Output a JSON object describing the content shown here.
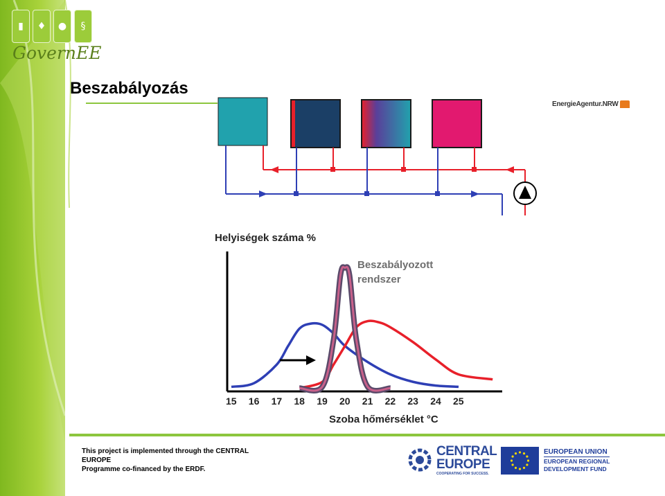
{
  "header": {
    "logo_text": "GovernEE",
    "logo_tile_icons": [
      "building-icon",
      "leaf-icon",
      "bulb-icon",
      "paragraph-icon"
    ],
    "title": "Beszabályozás",
    "energy_agency_logo": "EnergieAgentur.NRW"
  },
  "chart_data": {
    "type": "line",
    "title": "Helyiségek száma %",
    "xlabel": "Szoba hőmérséklet °C",
    "ylabel": "Helyiségek száma %",
    "x_ticks": [
      "15",
      "16",
      "17",
      "18",
      "19",
      "20",
      "21",
      "22",
      "23",
      "24",
      "25"
    ],
    "annotation": "Beszabályozott rendszer",
    "series": [
      {
        "color": "#2e3fb5",
        "x": [
          15,
          16,
          17,
          17.5,
          18,
          18.5,
          19,
          19.5,
          20,
          21,
          22,
          23,
          24,
          25
        ],
        "y": [
          0.02,
          0.05,
          0.2,
          0.35,
          0.49,
          0.53,
          0.52,
          0.45,
          0.35,
          0.22,
          0.12,
          0.06,
          0.03,
          0.02
        ]
      },
      {
        "color": "#e8202a",
        "x": [
          18,
          19,
          19.5,
          20,
          20.5,
          21,
          21.5,
          22,
          23,
          24,
          25,
          26.5
        ],
        "y": [
          0.01,
          0.06,
          0.2,
          0.35,
          0.5,
          0.55,
          0.54,
          0.5,
          0.38,
          0.24,
          0.12,
          0.08
        ]
      },
      {
        "color": "#7a3f6a",
        "x": [
          18,
          19,
          19.5,
          19.8,
          20,
          20.2,
          20.5,
          21,
          22
        ],
        "y": [
          0.01,
          0.02,
          0.4,
          0.92,
          0.98,
          0.92,
          0.4,
          0.02,
          0.01
        ]
      }
    ],
    "arrow": "right"
  },
  "colors": {
    "green": "#8cc63e",
    "supply": "#e8202a",
    "return": "#2e3fb5",
    "room1": "#21a2ad",
    "room2": "#1b3f66",
    "room4": "#e2196f"
  },
  "footer": {
    "line1": "This project is implemented through the CENTRAL EUROPE",
    "line2": "Programme co-financed by the ERDF.",
    "ce_line1": "CENTRAL",
    "ce_line2": "EUROPE",
    "ce_tagline": "COOPERATING FOR SUCCESS.",
    "eu_line1": "EUROPEAN UNION",
    "eu_line2": "EUROPEAN REGIONAL",
    "eu_line3": "DEVELOPMENT FUND"
  }
}
